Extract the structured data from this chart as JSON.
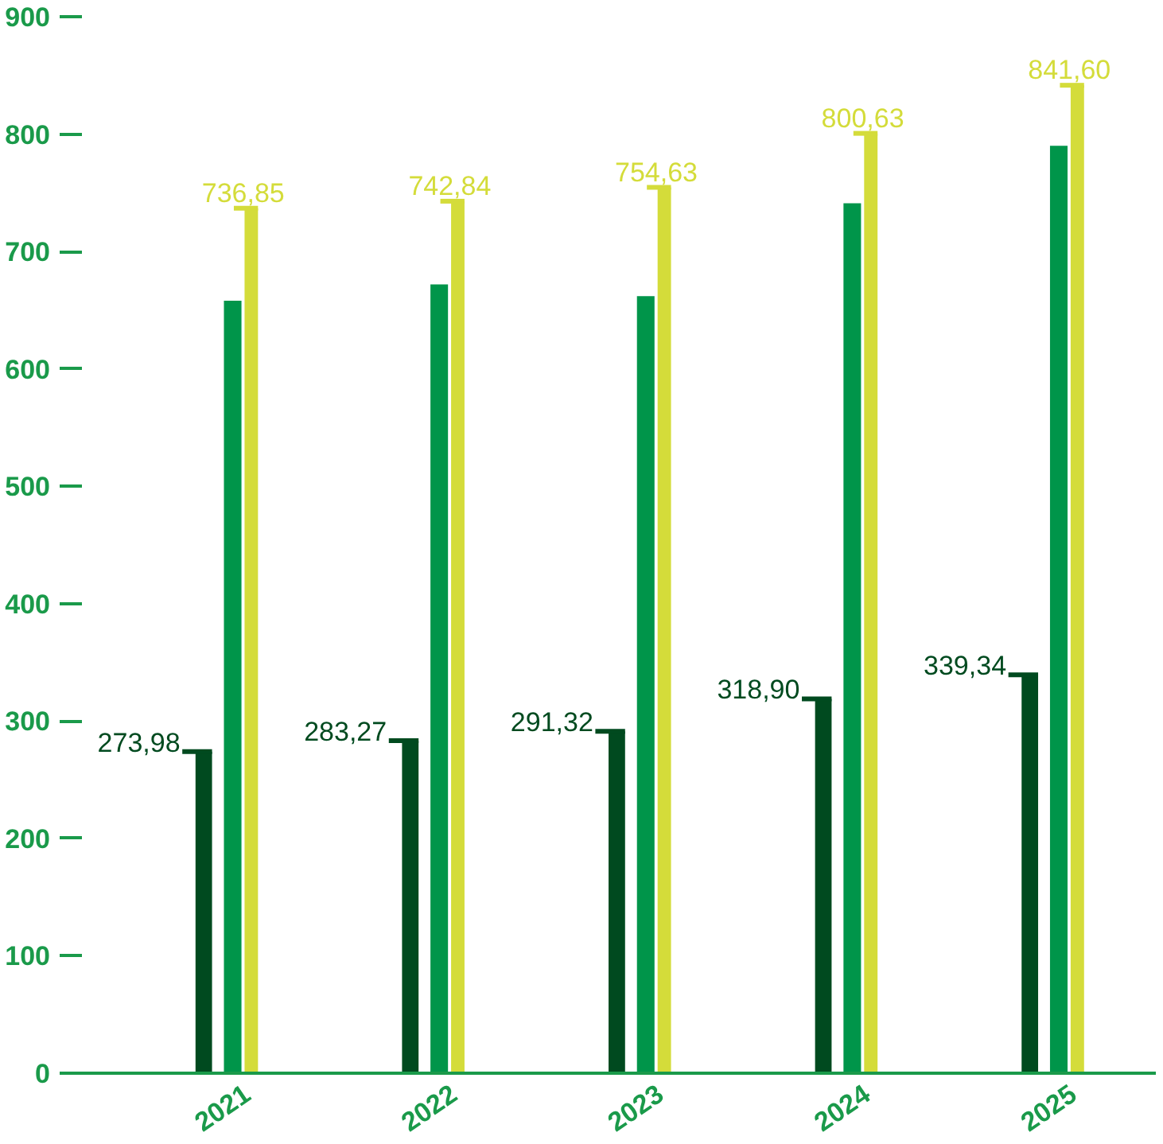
{
  "chart_data": {
    "type": "bar",
    "categories": [
      "2021",
      "2022",
      "2023",
      "2024",
      "2025"
    ],
    "series": [
      {
        "color": "#004a1f",
        "values": [
          273.98,
          283.27,
          291.32,
          318.9,
          339.34
        ],
        "value_labels": [
          "273,98",
          "283,27",
          "291,32",
          "318,90",
          "339,34"
        ]
      },
      {
        "color": "#00954a",
        "values": [
          658,
          672,
          662,
          741,
          790
        ]
      },
      {
        "color": "#d4dc3a",
        "values": [
          736.85,
          742.84,
          754.63,
          800.63,
          841.6
        ],
        "value_labels": [
          "736,85",
          "742,84",
          "754,63",
          "800,63",
          "841,60"
        ]
      }
    ],
    "ylim": [
      0,
      900
    ],
    "yticks": [
      0,
      100,
      200,
      300,
      400,
      500,
      600,
      700,
      800,
      900
    ],
    "grid": false
  }
}
